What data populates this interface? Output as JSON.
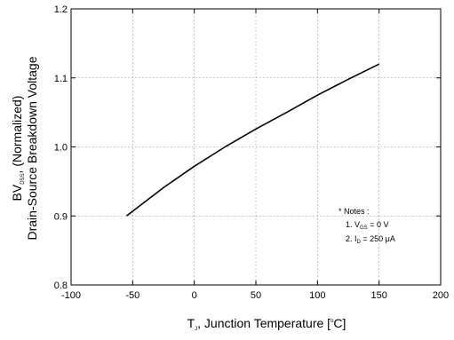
{
  "chart_data": {
    "type": "line",
    "xlabel": {
      "main": "T",
      "sub": "J",
      "rest_before_sup": ", Junction Temperature [",
      "sup": "o",
      "rest_after_sup": "C]"
    },
    "ylabel": {
      "line1_main": "BV",
      "line1_sub": "DSS",
      "line1_rest": ", (Normalized)",
      "line2": "Drain-Source Breakdown Voltage"
    },
    "xlim": [
      -100,
      200
    ],
    "ylim": [
      0.8,
      1.2
    ],
    "xticks": [
      -100,
      -50,
      0,
      50,
      100,
      150,
      200
    ],
    "xtick_labels": [
      "-100",
      "-50",
      "0",
      "50",
      "100",
      "150",
      "200"
    ],
    "yticks": [
      0.8,
      0.9,
      1.0,
      1.1,
      1.2
    ],
    "ytick_labels": [
      "0.8",
      "0.9",
      "1.0",
      "1.1",
      "1.2"
    ],
    "grid": true,
    "series": [
      {
        "x": [
          -55,
          -25,
          0,
          25,
          50,
          75,
          100,
          125,
          150
        ],
        "y": [
          0.9,
          0.941,
          0.972,
          1.0,
          1.026,
          1.05,
          1.075,
          1.098,
          1.12
        ]
      }
    ],
    "notes": {
      "title": "* Notes :",
      "line1_prefix": "1. V",
      "line1_sub": "GS",
      "line1_suffix": " = 0 V",
      "line2_prefix": "2. I",
      "line2_sub": "D",
      "line2_suffix": " = 250 μA"
    }
  }
}
